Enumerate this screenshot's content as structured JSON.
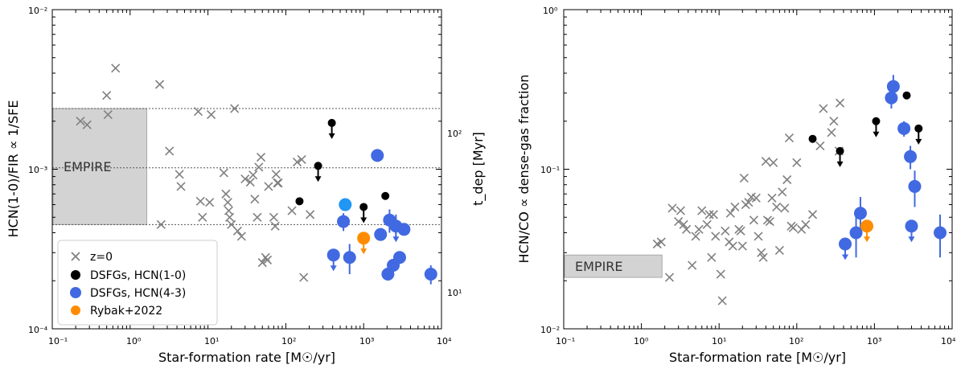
{
  "chart_data": [
    {
      "type": "scatter",
      "xlabel": "Star-formation rate [M☉/yr]",
      "ylabel": "HCN(1-0)/FIR ∝ 1/SFE",
      "y2label": "t_dep [Myr]",
      "xscale": "log",
      "yscale": "log",
      "xlim": [
        0.1,
        10000
      ],
      "ylim": [
        0.0001,
        0.01
      ],
      "x_ticks": [
        "10⁻¹",
        "10⁰",
        "10¹",
        "10²",
        "10³",
        "10⁴"
      ],
      "y_ticks": [
        "10⁻⁴",
        "10⁻³",
        "10⁻²"
      ],
      "y2_ticks": [
        "10¹",
        "10²"
      ],
      "empire_label": "EMPIRE",
      "empire_box": {
        "x": [
          0.1,
          1.6
        ],
        "y": [
          0.00045,
          0.0024
        ]
      },
      "hlines": [
        0.00045,
        0.00102,
        0.0024
      ],
      "legend": {
        "location": "lower-left",
        "entries": [
          "z=0",
          "DSFGs, HCN(1-0)",
          "DSFGs, HCN(4-3)",
          "Rybak+2022"
        ]
      },
      "series": [
        {
          "name": "z=0",
          "marker": "x",
          "color": "#808080",
          "x": [
            0.23,
            0.28,
            0.5,
            0.52,
            0.65,
            2.4,
            2.5,
            3.2,
            4.3,
            4.5,
            7.5,
            8,
            8.5,
            10.5,
            11,
            16,
            17,
            18,
            18.5,
            19,
            20,
            22,
            24,
            27,
            30,
            35,
            38,
            40,
            43,
            45,
            48,
            50,
            55,
            58,
            60,
            70,
            73,
            75,
            78,
            80,
            120,
            140,
            160,
            170,
            205
          ],
          "y": [
            0.002,
            0.0019,
            0.0029,
            0.0022,
            0.0043,
            0.0034,
            0.00045,
            0.0013,
            0.00093,
            0.00078,
            0.0023,
            0.00063,
            0.0005,
            0.00062,
            0.0022,
            0.00095,
            0.0007,
            0.00062,
            0.00055,
            0.0005,
            0.00045,
            0.0024,
            0.00041,
            0.00038,
            0.00087,
            0.00083,
            0.00092,
            0.00065,
            0.0005,
            0.00103,
            0.00119,
            0.00026,
            0.00028,
            0.00027,
            0.00078,
            0.0005,
            0.00044,
            0.00093,
            0.00082,
            0.00082,
            0.00055,
            0.00111,
            0.00115,
            0.00021,
            0.00052
          ]
        },
        {
          "name": "DSFGs, HCN(1-0)",
          "marker": "o",
          "color": "#000000",
          "x": [
            150,
            260,
            390,
            1000,
            1900
          ],
          "y": [
            0.00063,
            0.00105,
            0.00195,
            0.00058,
            0.00068
          ],
          "upper_limit": [
            false,
            true,
            true,
            true,
            false
          ]
        },
        {
          "name": "DSFGs, HCN(4-3)",
          "marker": "o",
          "color": "#4169e1",
          "x": [
            410,
            550,
            660,
            1500,
            1650,
            2050,
            2150,
            2400,
            2600,
            2900,
            3300,
            7300
          ],
          "y": [
            0.00029,
            0.00047,
            0.00028,
            0.00122,
            0.00039,
            0.00022,
            0.00048,
            0.00025,
            0.00044,
            0.00028,
            0.00042,
            0.00022
          ],
          "yerr": [
            0,
            6e-05,
            6e-05,
            0,
            0,
            0,
            8e-05,
            0,
            8e-05,
            0,
            0,
            3e-05
          ],
          "upper_limit": [
            true,
            false,
            false,
            false,
            false,
            false,
            false,
            false,
            true,
            false,
            false,
            false
          ]
        },
        {
          "name": "highlight",
          "marker": "o",
          "color": "#2196f3",
          "x": [
            580
          ],
          "y": [
            0.0006
          ]
        },
        {
          "name": "Rybak+2022",
          "marker": "o",
          "color": "#ff8c00",
          "x": [
            1000
          ],
          "y": [
            0.00037
          ],
          "upper_limit": [
            true
          ]
        }
      ]
    },
    {
      "type": "scatter",
      "xlabel": "Star-formation rate [M☉/yr]",
      "ylabel": "HCN/CO ∝ dense-gas fraction",
      "xscale": "log",
      "yscale": "log",
      "xlim": [
        0.1,
        10000
      ],
      "ylim": [
        0.01,
        1
      ],
      "x_ticks": [
        "10⁻¹",
        "10⁰",
        "10¹",
        "10²",
        "10³",
        "10⁴"
      ],
      "y_ticks": [
        "10⁻²",
        "10⁻¹",
        "10⁰"
      ],
      "empire_label": "EMPIRE",
      "empire_box": {
        "x": [
          0.1,
          1.8
        ],
        "y": [
          0.021,
          0.029
        ]
      },
      "series": [
        {
          "name": "z=0",
          "marker": "x",
          "color": "#808080",
          "x": [
            1.6,
            1.8,
            2.3,
            2.5,
            3.0,
            3.2,
            3.5,
            3.8,
            4.5,
            5.0,
            5.5,
            6.0,
            7.0,
            7.5,
            8.0,
            8.5,
            9.0,
            10.5,
            11,
            12,
            13.5,
            14,
            15,
            16,
            18,
            19,
            20,
            21,
            22,
            24,
            26,
            28,
            30,
            32,
            35,
            37,
            40,
            42,
            45,
            48,
            50,
            55,
            60,
            65,
            70,
            75,
            80,
            85,
            90,
            100,
            115,
            130,
            160,
            200,
            220,
            280,
            300,
            350,
            360
          ],
          "y": [
            0.034,
            0.035,
            0.021,
            0.057,
            0.047,
            0.055,
            0.045,
            0.042,
            0.025,
            0.038,
            0.042,
            0.055,
            0.045,
            0.052,
            0.028,
            0.052,
            0.038,
            0.022,
            0.015,
            0.041,
            0.035,
            0.053,
            0.033,
            0.058,
            0.042,
            0.041,
            0.033,
            0.088,
            0.06,
            0.062,
            0.067,
            0.048,
            0.066,
            0.038,
            0.03,
            0.028,
            0.112,
            0.048,
            0.047,
            0.066,
            0.11,
            0.058,
            0.031,
            0.072,
            0.057,
            0.086,
            0.157,
            0.044,
            0.043,
            0.11,
            0.042,
            0.045,
            0.052,
            0.14,
            0.24,
            0.17,
            0.2,
            0.13,
            0.26
          ]
        },
        {
          "name": "DSFGs, HCN(1-0)",
          "marker": "o",
          "color": "#000000",
          "x": [
            160,
            360,
            1050,
            2600,
            3700
          ],
          "y": [
            0.155,
            0.13,
            0.2,
            0.29,
            0.18
          ],
          "upper_limit": [
            false,
            true,
            true,
            false,
            true
          ]
        },
        {
          "name": "DSFGs, HCN(4-3)",
          "marker": "o",
          "color": "#4169e1",
          "x": [
            420,
            580,
            660,
            1650,
            1750,
            2400,
            2900,
            3000,
            3300,
            7000
          ],
          "y": [
            0.034,
            0.04,
            0.053,
            0.28,
            0.33,
            0.18,
            0.12,
            0.044,
            0.078,
            0.04
          ],
          "yerr": [
            0,
            0.012,
            0.014,
            0.04,
            0.06,
            0.02,
            0.02,
            0,
            0.02,
            0.012
          ],
          "upper_limit": [
            true,
            false,
            false,
            false,
            false,
            false,
            false,
            true,
            false,
            false
          ]
        },
        {
          "name": "Rybak+2022",
          "marker": "o",
          "color": "#ff8c00",
          "x": [
            800
          ],
          "y": [
            0.044
          ],
          "upper_limit": [
            true
          ]
        }
      ]
    }
  ]
}
